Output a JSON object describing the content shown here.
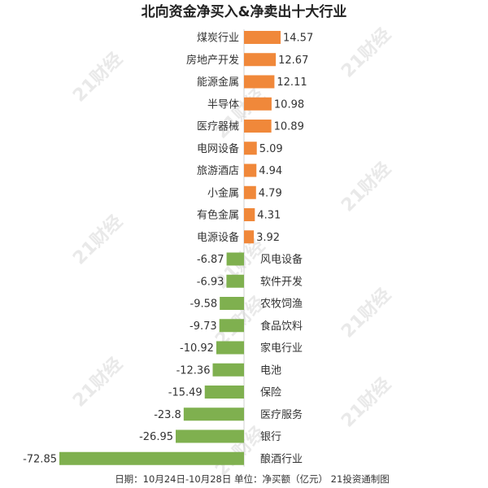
{
  "page": {
    "title": "北向资金净买入&净卖出十大行业",
    "footer": "日期：10月24日-10月28日 单位：净买额（亿元） 21投资通制图",
    "watermark": "21财经"
  },
  "colors": {
    "positive": "#f0883a",
    "negative": "#7fb04f",
    "text": "#333333",
    "axis": "#d0d0d0",
    "watermark": "#e9e9e9"
  },
  "chart_data": {
    "type": "bar",
    "orientation": "horizontal",
    "title": "北向资金净买入&净卖出十大行业",
    "categories": [
      "煤炭行业",
      "房地产开发",
      "能源金属",
      "半导体",
      "医疗器械",
      "电网设备",
      "旅游酒店",
      "小金属",
      "有色金属",
      "电源设备",
      "风电设备",
      "软件开发",
      "农牧饲渔",
      "食品饮料",
      "家电行业",
      "电池",
      "保险",
      "医疗服务",
      "银行",
      "酿酒行业"
    ],
    "values": [
      14.57,
      12.67,
      12.11,
      10.98,
      10.89,
      5.09,
      4.94,
      4.79,
      4.31,
      3.92,
      -6.87,
      -6.93,
      -9.58,
      -9.73,
      -10.92,
      -12.36,
      -15.49,
      -23.8,
      -26.95,
      -72.85
    ],
    "value_labels": [
      "14.57",
      "12.67",
      "12.11",
      "10.98",
      "10.89",
      "5.09",
      "4.94",
      "4.79",
      "4.31",
      "3.92",
      "-6.87",
      "-6.93",
      "-9.58",
      "-9.73",
      "-10.92",
      "-12.36",
      "-15.49",
      "-23.8",
      "-26.95",
      "-72.85"
    ],
    "xlim": [
      -72.85,
      14.57
    ],
    "grid": false,
    "legend": "none"
  }
}
